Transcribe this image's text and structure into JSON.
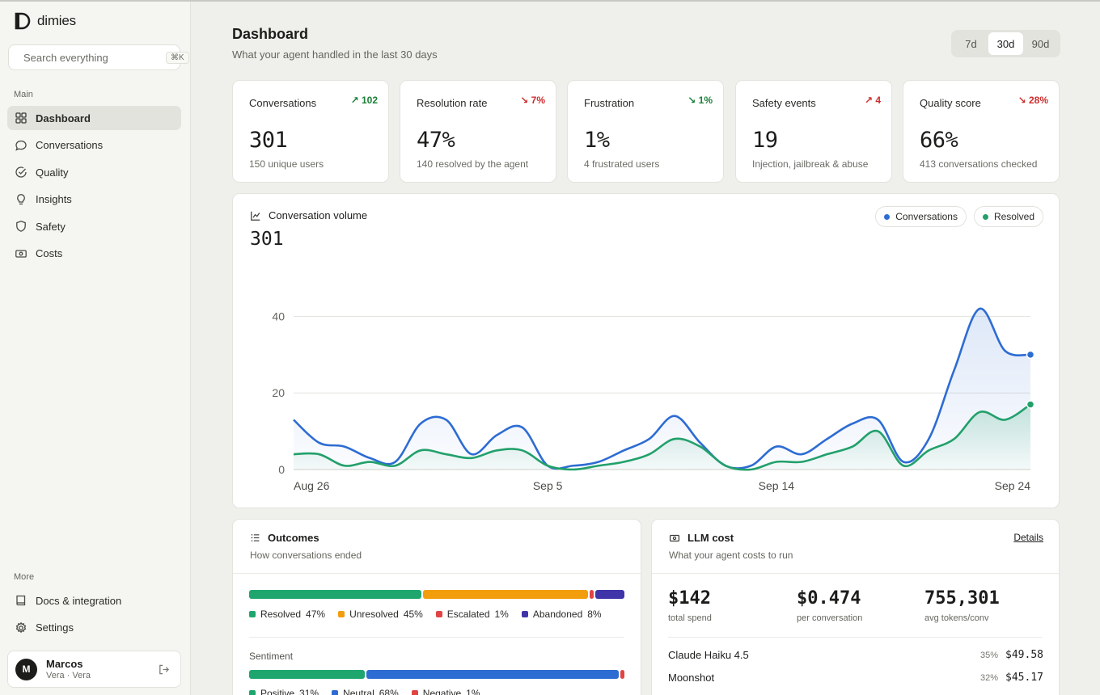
{
  "brand": {
    "name": "dimies"
  },
  "search": {
    "placeholder": "Search everything",
    "shortcut": "⌘K"
  },
  "sidebar": {
    "main_label": "Main",
    "items": [
      {
        "label": "Dashboard",
        "icon": "grid-icon",
        "active": true
      },
      {
        "label": "Conversations",
        "icon": "chat-bubble-icon"
      },
      {
        "label": "Quality",
        "icon": "check-circle-icon"
      },
      {
        "label": "Insights",
        "icon": "lightbulb-icon"
      },
      {
        "label": "Safety",
        "icon": "shield-icon"
      },
      {
        "label": "Costs",
        "icon": "banknote-icon"
      }
    ],
    "more_label": "More",
    "more_items": [
      {
        "label": "Docs & integration",
        "icon": "book-icon"
      },
      {
        "label": "Settings",
        "icon": "gear-icon"
      }
    ]
  },
  "user": {
    "initial": "M",
    "name": "Marcos",
    "sub": "Vera · Vera"
  },
  "header": {
    "title": "Dashboard",
    "subtitle": "What your agent handled in the last 30 days"
  },
  "range": {
    "options": [
      "7d",
      "30d",
      "90d"
    ],
    "selected": "30d"
  },
  "kpis": [
    {
      "label": "Conversations",
      "delta": "↗ 102",
      "trend": "up",
      "value": "301",
      "sub": "150 unique users"
    },
    {
      "label": "Resolution rate",
      "delta": "↘ 7%",
      "trend": "down",
      "value": "47%",
      "sub": "140 resolved by the agent"
    },
    {
      "label": "Frustration",
      "delta": "↘ 1%",
      "trend": "up",
      "value": "1%",
      "sub": "4 frustrated users"
    },
    {
      "label": "Safety events",
      "delta": "↗ 4",
      "trend": "down",
      "value": "19",
      "sub": "Injection, jailbreak & abuse"
    },
    {
      "label": "Quality score",
      "delta": "↘ 28%",
      "trend": "down",
      "value": "66%",
      "sub": "413 conversations checked"
    }
  ],
  "volume": {
    "title": "Conversation volume",
    "total": "301"
  },
  "chart_data": {
    "type": "area",
    "x": [
      "Aug 26",
      "Aug 27",
      "Aug 28",
      "Aug 29",
      "Aug 30",
      "Aug 31",
      "Sep 1",
      "Sep 2",
      "Sep 3",
      "Sep 4",
      "Sep 5",
      "Sep 6",
      "Sep 7",
      "Sep 8",
      "Sep 9",
      "Sep 10",
      "Sep 11",
      "Sep 12",
      "Sep 13",
      "Sep 14",
      "Sep 15",
      "Sep 16",
      "Sep 17",
      "Sep 18",
      "Sep 19",
      "Sep 20",
      "Sep 21",
      "Sep 22",
      "Sep 23",
      "Sep 24"
    ],
    "x_ticks": [
      "Aug 26",
      "Sep 5",
      "Sep 14",
      "Sep 24"
    ],
    "y_ticks": [
      0,
      20,
      40
    ],
    "ylim": [
      0,
      42
    ],
    "series": [
      {
        "name": "Conversations",
        "color": "#2d6cd3",
        "values": [
          13,
          7,
          6,
          3,
          2,
          12,
          13,
          4,
          9,
          11,
          1,
          1,
          2,
          5,
          8,
          14,
          7,
          1,
          1,
          6,
          4,
          8,
          12,
          13,
          2,
          8,
          26,
          42,
          31,
          30
        ]
      },
      {
        "name": "Resolved",
        "color": "#22a06b",
        "values": [
          4,
          4,
          1,
          2,
          1,
          5,
          4,
          3,
          5,
          5,
          1,
          0,
          1,
          2,
          4,
          8,
          6,
          1,
          0,
          2,
          2,
          4,
          6,
          10,
          1,
          5,
          8,
          15,
          13,
          17
        ]
      }
    ],
    "legend_placement": "top-right",
    "grid": true
  },
  "outcomes": {
    "title": "Outcomes",
    "subtitle": "How conversations ended",
    "segments": [
      {
        "label": "Resolved",
        "pct": "47%",
        "value": 47,
        "color": "#1fa66f"
      },
      {
        "label": "Unresolved",
        "pct": "45%",
        "value": 45,
        "color": "#f29d0c"
      },
      {
        "label": "Escalated",
        "pct": "1%",
        "value": 1,
        "color": "#e14444"
      },
      {
        "label": "Abandoned",
        "pct": "8%",
        "value": 8,
        "color": "#3f35a8"
      }
    ],
    "sentiment_label": "Sentiment",
    "sentiment": [
      {
        "label": "Positive",
        "pct": "31%",
        "value": 31,
        "color": "#1fa66f"
      },
      {
        "label": "Neutral",
        "pct": "68%",
        "value": 68,
        "color": "#2d6cd3"
      },
      {
        "label": "Negative",
        "pct": "1%",
        "value": 1,
        "color": "#e14444"
      }
    ]
  },
  "llm": {
    "title": "LLM cost",
    "subtitle": "What your agent costs to run",
    "details_label": "Details",
    "stats": [
      {
        "value": "$142",
        "label": "total spend"
      },
      {
        "value": "$0.474",
        "label": "per conversation"
      },
      {
        "value": "755,301",
        "label": "avg tokens/conv"
      }
    ],
    "models": [
      {
        "name": "Claude Haiku 4.5",
        "pct": "35%",
        "amount": "$49.58"
      },
      {
        "name": "Moonshot",
        "pct": "32%",
        "amount": "$45.17"
      }
    ]
  }
}
